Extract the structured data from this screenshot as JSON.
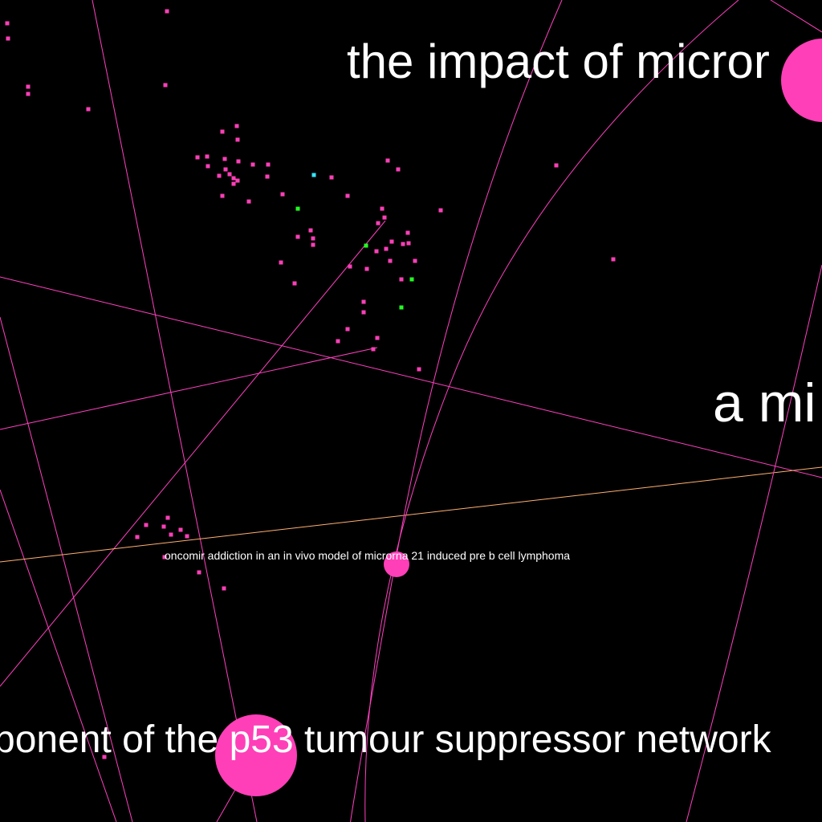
{
  "graph": {
    "background": "#000000",
    "edge_colors": {
      "pink": "#ff40c0",
      "orange": "#ffb070"
    },
    "node_colors": {
      "pink": "#ff3fb8",
      "green": "#22ff22",
      "cyan": "#33e6ff"
    },
    "labels": {
      "microrna_impact": "the impact of micror",
      "a_mi": "a mi",
      "oncomir": "oncomir addiction in an in vivo model of microrna 21 induced pre b cell lymphoma",
      "p53": "ponent of the p53 tumour suppressor network"
    }
  }
}
